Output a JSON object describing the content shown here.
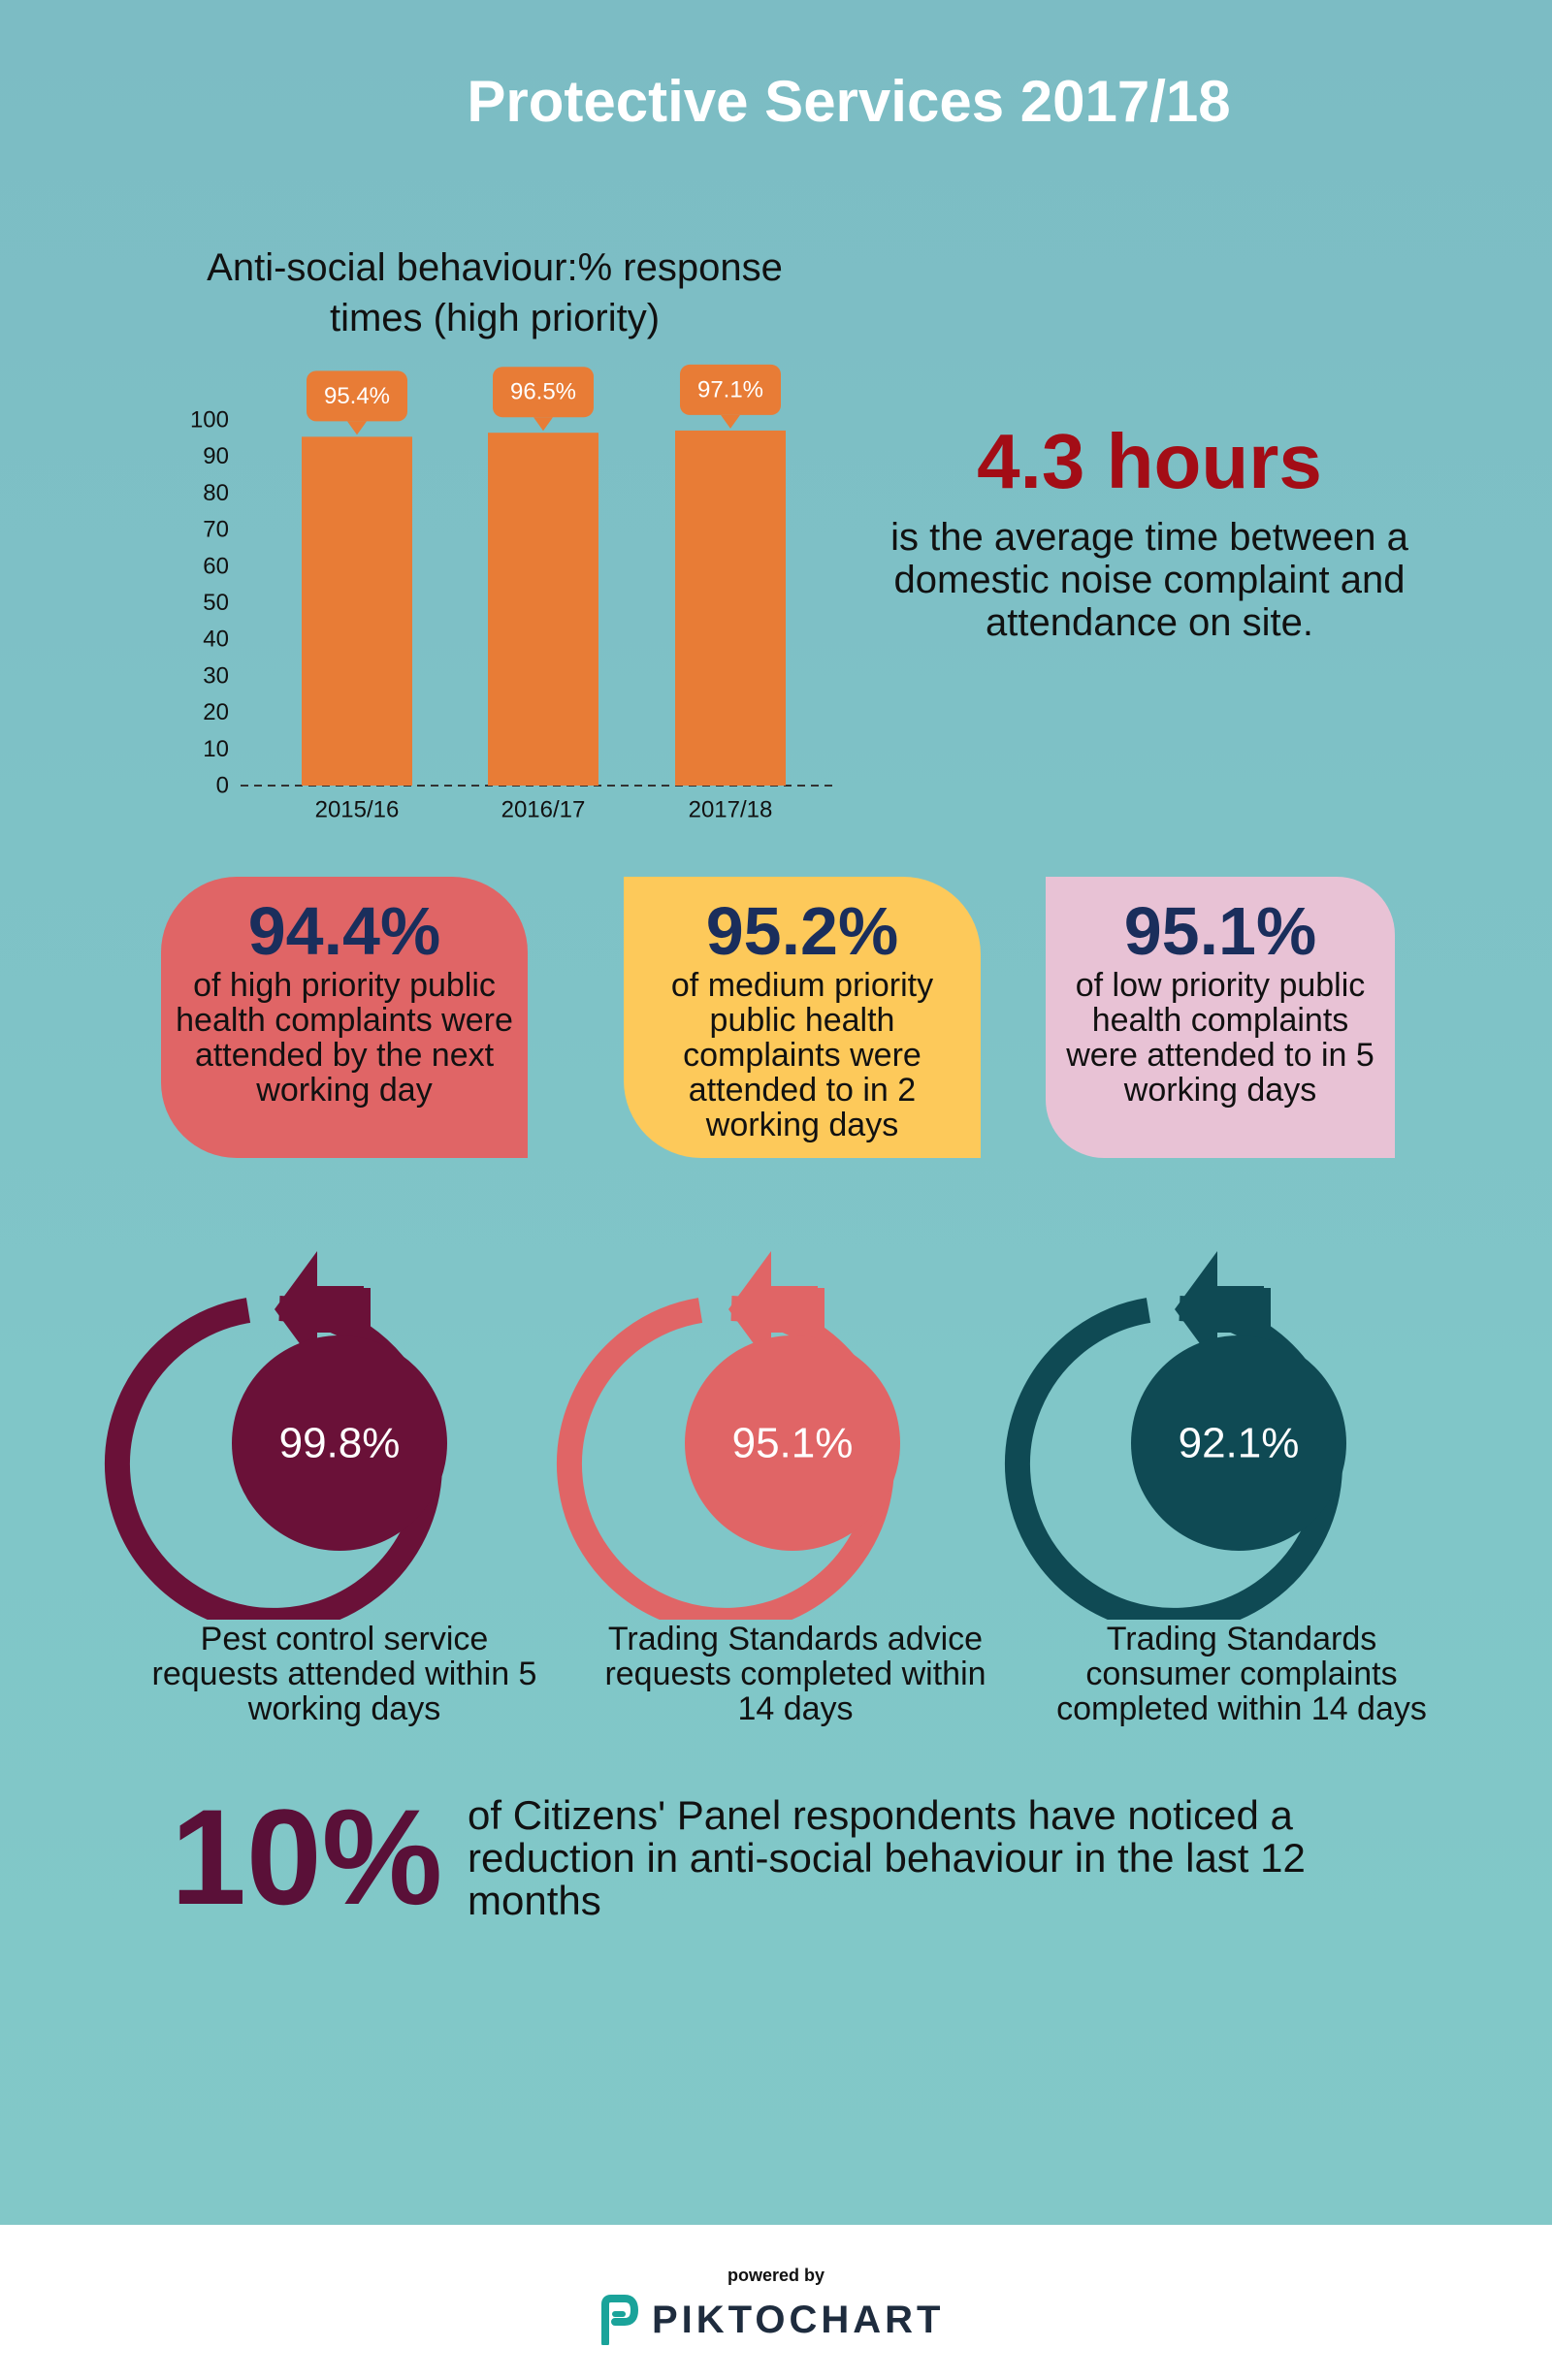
{
  "title": "Protective Services 2017/18",
  "chart_data": {
    "type": "bar",
    "title": "Anti-social behaviour:% response times (high priority)",
    "categories": [
      "2015/16",
      "2016/17",
      "2017/18"
    ],
    "values": [
      95.4,
      96.5,
      97.1
    ],
    "value_labels": [
      "95.4%",
      "96.5%",
      "97.1%"
    ],
    "ylim": [
      0,
      100
    ],
    "yticks": [
      0,
      10,
      20,
      30,
      40,
      50,
      60,
      70,
      80,
      90,
      100
    ],
    "xlabel": "",
    "ylabel": "",
    "grid": false,
    "colors": {
      "bar": "#e87c36",
      "label_bg": "#e87c36",
      "label_text": "#ffffff"
    }
  },
  "noise": {
    "value": "4.3 hours",
    "description": "is the average time between a domestic noise complaint and attendance on site."
  },
  "cards": [
    {
      "pct": "94.4%",
      "desc": "of high priority public health complaints were attended by the next working day",
      "color": "#e06566"
    },
    {
      "pct": "95.2%",
      "desc": "of medium priority public health complaints were attended to in 2 working days",
      "color": "#fdc95a"
    },
    {
      "pct": "95.1%",
      "desc": "of low priority public health complaints were attended to in 5 working days",
      "color": "#e8c2d5"
    }
  ],
  "rings": [
    {
      "value": "99.8%",
      "label": "Pest control service requests attended within 5 working days",
      "color": "#6a1138"
    },
    {
      "value": "95.1%",
      "label": "Trading Standards advice requests completed within 14 days",
      "color": "#e06566"
    },
    {
      "value": "92.1%",
      "label": "Trading Standards consumer complaints completed within 14 days",
      "color": "#0f4a54"
    }
  ],
  "panel": {
    "value": "10%",
    "description": "of Citizens' Panel respondents have noticed a reduction in anti-social behaviour in the last 12 months"
  },
  "footer": {
    "powered_by": "powered by",
    "brand": "PIKTOCHART",
    "brand_color": "#1aa39a"
  }
}
